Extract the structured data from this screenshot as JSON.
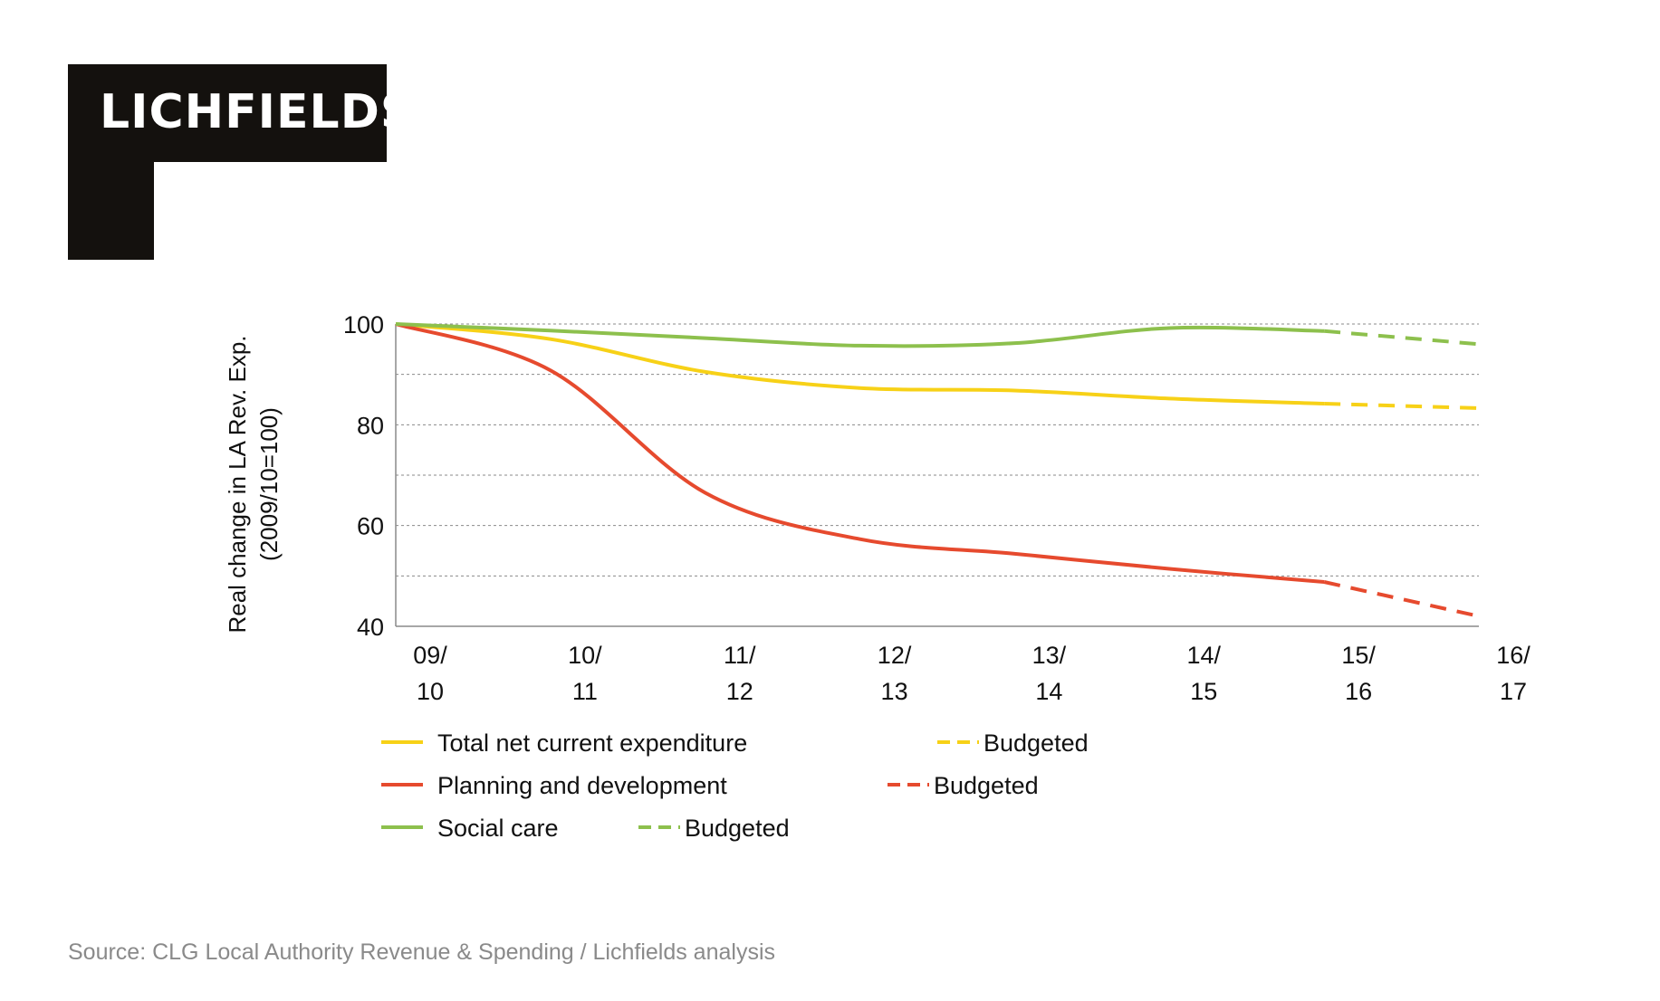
{
  "brand": {
    "logo_text": "LICHFIELDS"
  },
  "source": "Source: CLG Local Authority Revenue & Spending / Lichfields analysis",
  "chart_data": {
    "type": "line",
    "title": "",
    "ylabel_line1": "Real change in LA Rev. Exp.",
    "ylabel_line2": "(2009/10=100)",
    "ylim": [
      40,
      100
    ],
    "yticks": [
      40,
      60,
      80,
      100
    ],
    "grid": true,
    "categories": [
      "09/10",
      "10/11",
      "11/12",
      "12/13",
      "13/14",
      "14/15",
      "15/16",
      "16/17"
    ],
    "x_tick_labels": [
      [
        "09/",
        "10"
      ],
      [
        "10/",
        "11"
      ],
      [
        "11/",
        "12"
      ],
      [
        "12/",
        "13"
      ],
      [
        "13/",
        "14"
      ],
      [
        "14/",
        "15"
      ],
      [
        "15/",
        "16"
      ],
      [
        "16/",
        "17"
      ]
    ],
    "series": [
      {
        "name": "Total net current expenditure",
        "color": "#f7d117",
        "values": [
          100,
          97,
          90.5,
          87.3,
          86.8,
          85.2,
          84.2,
          null
        ]
      },
      {
        "name": "Budgeted",
        "color": "#f7d117",
        "dashed": true,
        "values": [
          null,
          null,
          null,
          null,
          null,
          null,
          84.2,
          83.3
        ]
      },
      {
        "name": "Planning and development",
        "color": "#e64a2e",
        "values": [
          100,
          90.8,
          66.5,
          57.3,
          54.4,
          51.4,
          48.8,
          null
        ]
      },
      {
        "name": "Budgeted",
        "color": "#e64a2e",
        "dashed": true,
        "values": [
          null,
          null,
          null,
          null,
          null,
          null,
          48.8,
          42
        ]
      },
      {
        "name": "Social care",
        "color": "#8dc04d",
        "values": [
          100,
          98.7,
          97.2,
          95.7,
          96.2,
          99.2,
          98.6,
          null
        ]
      },
      {
        "name": "Budgeted",
        "color": "#8dc04d",
        "dashed": true,
        "values": [
          null,
          null,
          null,
          null,
          null,
          null,
          98.6,
          96
        ]
      }
    ]
  }
}
